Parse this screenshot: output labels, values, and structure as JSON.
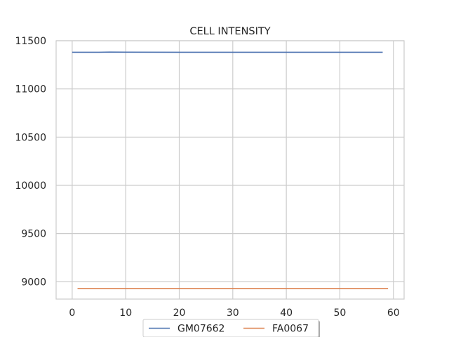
{
  "chart_data": {
    "type": "line",
    "title": "CELL INTENSITY",
    "xlabel": "",
    "ylabel": "",
    "xlim": [
      -3,
      62
    ],
    "ylim": [
      8820,
      11500
    ],
    "xticks": [
      0,
      10,
      20,
      30,
      40,
      50,
      60
    ],
    "yticks": [
      9000,
      9500,
      10000,
      10500,
      11000,
      11500
    ],
    "grid": true,
    "legend": {
      "placement": "bottom-center, below plot",
      "columns": 2
    },
    "series": [
      {
        "name": "GM07662",
        "color": "#4c72b0",
        "x": [
          0,
          5,
          7,
          10,
          20,
          30,
          40,
          50,
          58
        ],
        "y": [
          11380,
          11380,
          11382,
          11381,
          11380,
          11380,
          11380,
          11380,
          11380
        ]
      },
      {
        "name": "FA0067",
        "color": "#dd8452",
        "x": [
          1,
          10,
          20,
          30,
          40,
          50,
          59
        ],
        "y": [
          8930,
          8930,
          8930,
          8930,
          8930,
          8930,
          8930
        ]
      }
    ]
  }
}
